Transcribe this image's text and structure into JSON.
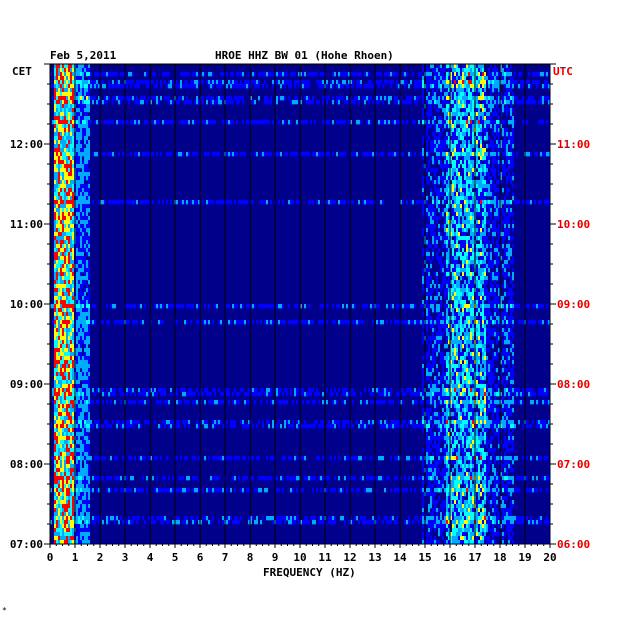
{
  "header": {
    "date": "Feb 5,2011",
    "station": "HROE HHZ BW 01 (Hohe Rhoen)"
  },
  "footer_mark": "*",
  "chart_data": {
    "type": "heatmap",
    "title": "HROE HHZ BW 01 (Hohe Rhoen)",
    "date": "Feb 5,2011",
    "xlabel": "FREQUENCY (HZ)",
    "xlim": [
      0,
      20
    ],
    "x_ticks": [
      "0",
      "1",
      "2",
      "3",
      "4",
      "5",
      "6",
      "7",
      "8",
      "9",
      "10",
      "11",
      "12",
      "13",
      "14",
      "15",
      "16",
      "17",
      "18",
      "19",
      "20"
    ],
    "left_axis_label": "CET",
    "right_axis_label": "UTC",
    "left_time_ticks": [
      "12:00",
      "11:00",
      "10:00",
      "09:00",
      "08:00",
      "07:00"
    ],
    "right_time_ticks": [
      "11:00",
      "10:00",
      "09:00",
      "08:00",
      "07:00",
      "06:00"
    ],
    "time_range_cet": [
      "07:00",
      "13:00"
    ],
    "colormap": [
      "#00008b",
      "#0000ff",
      "#00aaff",
      "#00ffff",
      "#ffff00",
      "#ff0000"
    ],
    "background_color": "#00008b",
    "high_energy_bands_hz": [
      [
        0.1,
        0.9
      ],
      [
        15.8,
        17.4
      ]
    ],
    "grid": "vertical lines every 1 Hz"
  }
}
